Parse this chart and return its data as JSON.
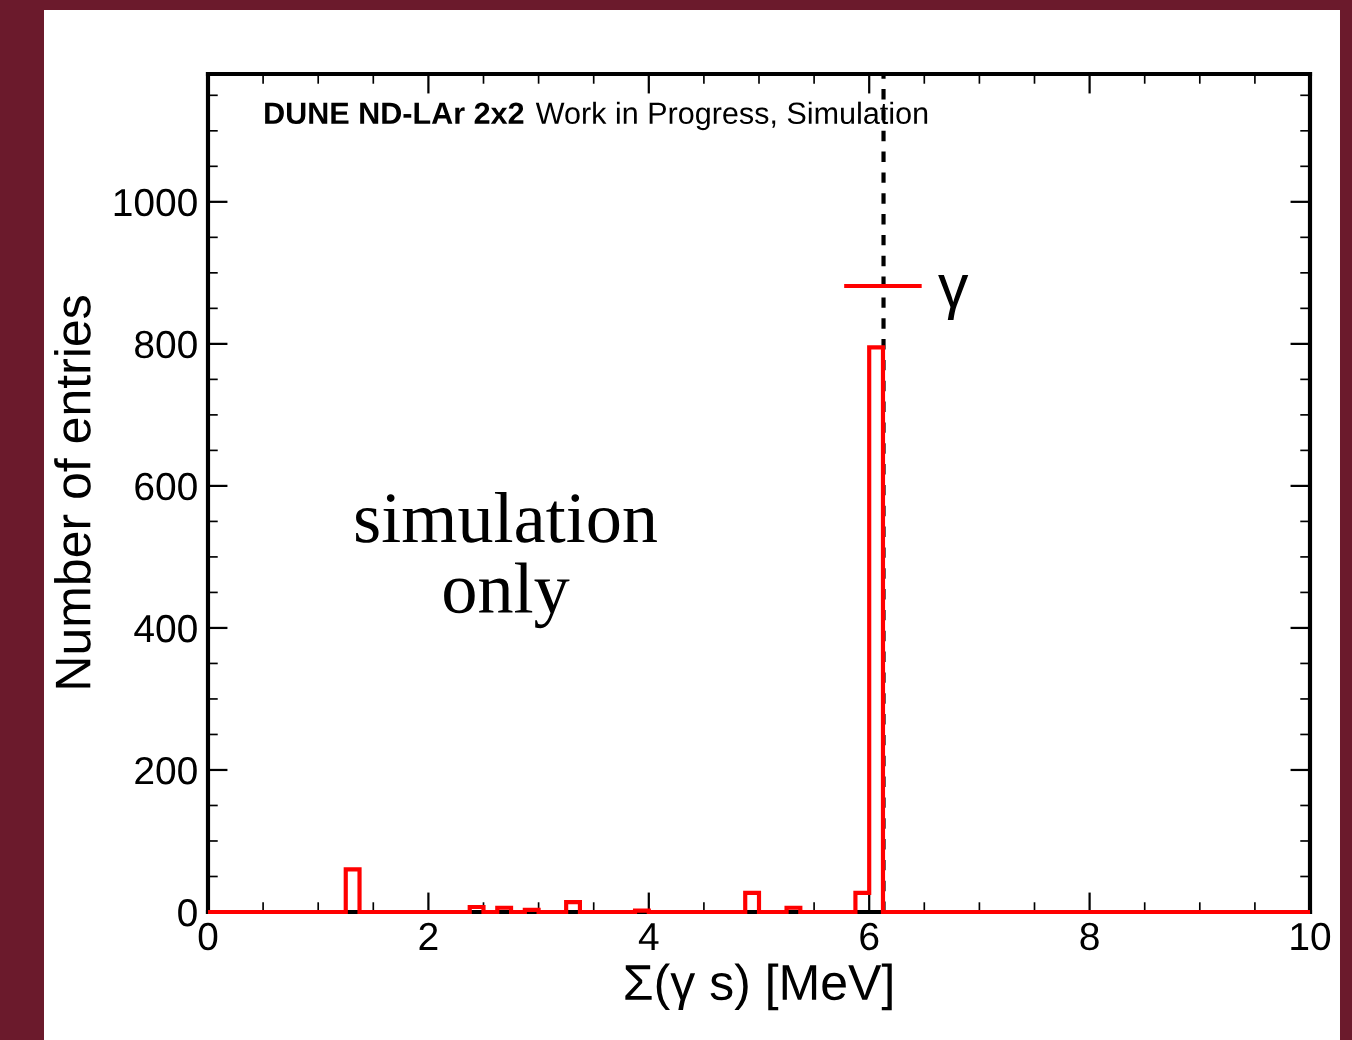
{
  "chart_data": {
    "type": "histogram",
    "xlabel": "Σ(γ s) [MeV]",
    "ylabel": "Number of entries",
    "bins": [
      0,
      0.125,
      0.25,
      0.375,
      0.5,
      0.625,
      0.75,
      0.875,
      1,
      1.125,
      1.25,
      1.375,
      1.5,
      1.625,
      1.75,
      1.875,
      2,
      2.125,
      2.25,
      2.375,
      2.5,
      2.625,
      2.75,
      2.875,
      3,
      3.125,
      3.25,
      3.375,
      3.5,
      3.625,
      3.75,
      3.875,
      4,
      4.125,
      4.25,
      4.375,
      4.5,
      4.625,
      4.75,
      4.875,
      5,
      5.125,
      5.25,
      5.375,
      5.5,
      5.625,
      5.75,
      5.875,
      6,
      6.125,
      6.25,
      6.375,
      6.5,
      6.625,
      6.75,
      6.875,
      7,
      7.125,
      7.25,
      7.375,
      7.5,
      7.625,
      7.75,
      7.875,
      8,
      8.125,
      8.25,
      8.375,
      8.5,
      8.625,
      8.75,
      8.875,
      9,
      9.125,
      9.25,
      9.375,
      9.5,
      9.625,
      9.75,
      9.875,
      10
    ],
    "series": [
      {
        "name": "γ",
        "color": "#ff0000",
        "values": [
          0,
          0,
          0,
          0,
          0,
          0,
          0,
          0,
          0,
          0,
          60,
          0,
          0,
          0,
          0,
          0,
          0,
          0,
          0,
          7,
          0,
          6,
          0,
          3,
          0,
          0,
          14,
          0,
          0,
          0,
          0,
          2,
          0,
          0,
          0,
          0,
          0,
          0,
          0,
          27,
          0,
          0,
          6,
          0,
          0,
          0,
          0,
          27,
          795,
          0,
          0,
          0,
          0,
          0,
          0,
          0,
          0,
          0,
          0,
          0,
          0,
          0,
          0,
          0,
          0,
          0,
          0,
          0,
          0,
          0,
          0,
          0,
          0,
          0,
          0,
          0,
          0,
          0,
          0,
          0
        ]
      }
    ],
    "xlim": [
      0,
      10
    ],
    "xticks": [
      0,
      2,
      4,
      6,
      8,
      10
    ],
    "ylim": [
      0,
      1180
    ],
    "yticks": [
      0,
      200,
      400,
      600,
      800,
      1000
    ],
    "ref_lines": [
      {
        "axis": "x",
        "value": 6.13,
        "color": "#000000",
        "line_style": "dotted"
      }
    ],
    "annotations": [
      "DUNE ND-LAr 2x2",
      "Work in Progress, Simulation",
      "simulation\nonly"
    ],
    "legend": "top right",
    "grid": false
  }
}
